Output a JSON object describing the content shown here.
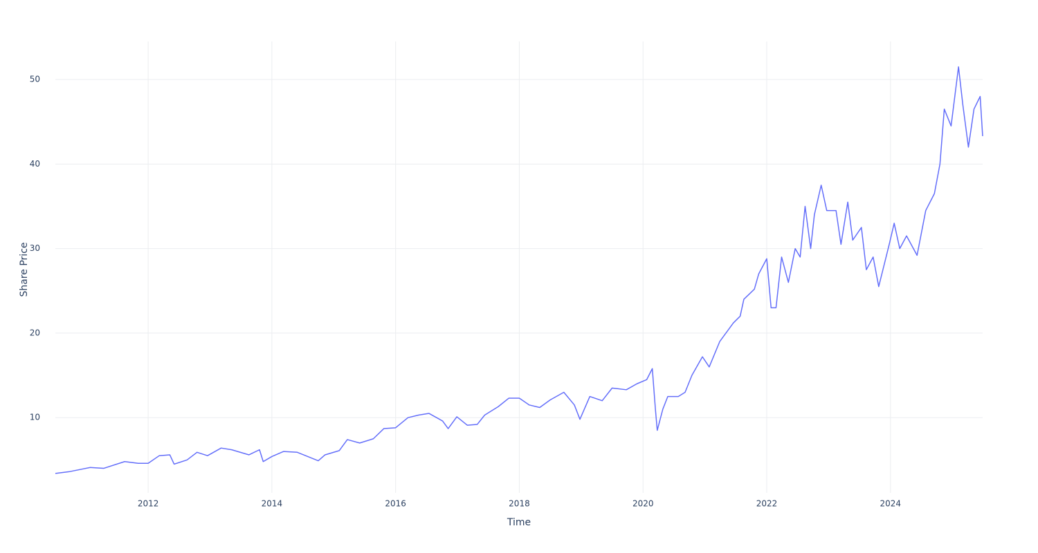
{
  "chart_data": {
    "type": "line",
    "x_label": "Time",
    "y_label": "Share Price",
    "x": [
      2010.5,
      2010.72,
      2011.06,
      2011.28,
      2011.62,
      2011.84,
      2012.0,
      2012.18,
      2012.35,
      2012.42,
      2012.63,
      2012.79,
      2012.96,
      2013.18,
      2013.35,
      2013.63,
      2013.8,
      2013.86,
      2014.0,
      2014.19,
      2014.41,
      2014.75,
      2014.86,
      2015.09,
      2015.22,
      2015.42,
      2015.64,
      2015.81,
      2016.0,
      2016.2,
      2016.37,
      2016.54,
      2016.76,
      2016.85,
      2016.99,
      2017.16,
      2017.32,
      2017.44,
      2017.66,
      2017.83,
      2018.0,
      2018.16,
      2018.33,
      2018.5,
      2018.72,
      2018.89,
      2018.98,
      2019.14,
      2019.34,
      2019.5,
      2019.73,
      2019.9,
      2020.06,
      2020.15,
      2020.2,
      2020.23,
      2020.32,
      2020.4,
      2020.57,
      2020.68,
      2020.79,
      2020.96,
      2021.07,
      2021.24,
      2021.46,
      2021.57,
      2021.63,
      2021.8,
      2021.87,
      2022.0,
      2022.07,
      2022.15,
      2022.24,
      2022.35,
      2022.46,
      2022.54,
      2022.62,
      2022.71,
      2022.77,
      2022.88,
      2022.97,
      2023.12,
      2023.2,
      2023.31,
      2023.39,
      2023.53,
      2023.61,
      2023.72,
      2023.81,
      2023.98,
      2024.06,
      2024.15,
      2024.26,
      2024.43,
      2024.57,
      2024.71,
      2024.8,
      2024.87,
      2024.98,
      2025.1,
      2025.17,
      2025.26,
      2025.35,
      2025.45,
      2025.49
    ],
    "series": [
      {
        "name": "Share Price",
        "color": "#636efa",
        "values": [
          3.4,
          3.6,
          4.1,
          4.0,
          4.8,
          4.6,
          4.6,
          5.5,
          5.6,
          4.5,
          5.0,
          5.9,
          5.5,
          6.4,
          6.2,
          5.6,
          6.2,
          4.8,
          5.4,
          6.0,
          5.9,
          4.9,
          5.6,
          6.1,
          7.4,
          7.0,
          7.5,
          8.7,
          8.8,
          10.0,
          10.3,
          10.5,
          9.6,
          8.7,
          10.1,
          9.1,
          9.2,
          10.3,
          11.3,
          12.3,
          12.3,
          11.5,
          11.2,
          12.1,
          13.0,
          11.5,
          9.8,
          12.5,
          12.0,
          13.5,
          13.3,
          14.0,
          14.5,
          15.8,
          11.0,
          8.5,
          11.0,
          12.5,
          12.5,
          13.0,
          15.0,
          17.2,
          16.0,
          19.0,
          21.2,
          22.0,
          24.0,
          25.2,
          27.0,
          28.8,
          23.0,
          23.0,
          29.0,
          26.0,
          30.0,
          29.0,
          35.0,
          30.0,
          34.0,
          37.5,
          34.5,
          34.5,
          30.5,
          35.5,
          31.0,
          32.5,
          27.5,
          29.0,
          25.5,
          30.5,
          33.0,
          30.0,
          31.5,
          29.2,
          34.5,
          36.5,
          40.0,
          46.5,
          44.5,
          51.5,
          47.0,
          42.0,
          46.5,
          48.0,
          43.3
        ]
      }
    ],
    "xlim": [
      2010.5,
      2025.49
    ],
    "ylim": [
      1.1,
      54.5
    ],
    "xticks": [
      2012,
      2014,
      2016,
      2018,
      2020,
      2022,
      2024
    ],
    "yticks": [
      10,
      20,
      30,
      40,
      50
    ],
    "grid": true
  }
}
